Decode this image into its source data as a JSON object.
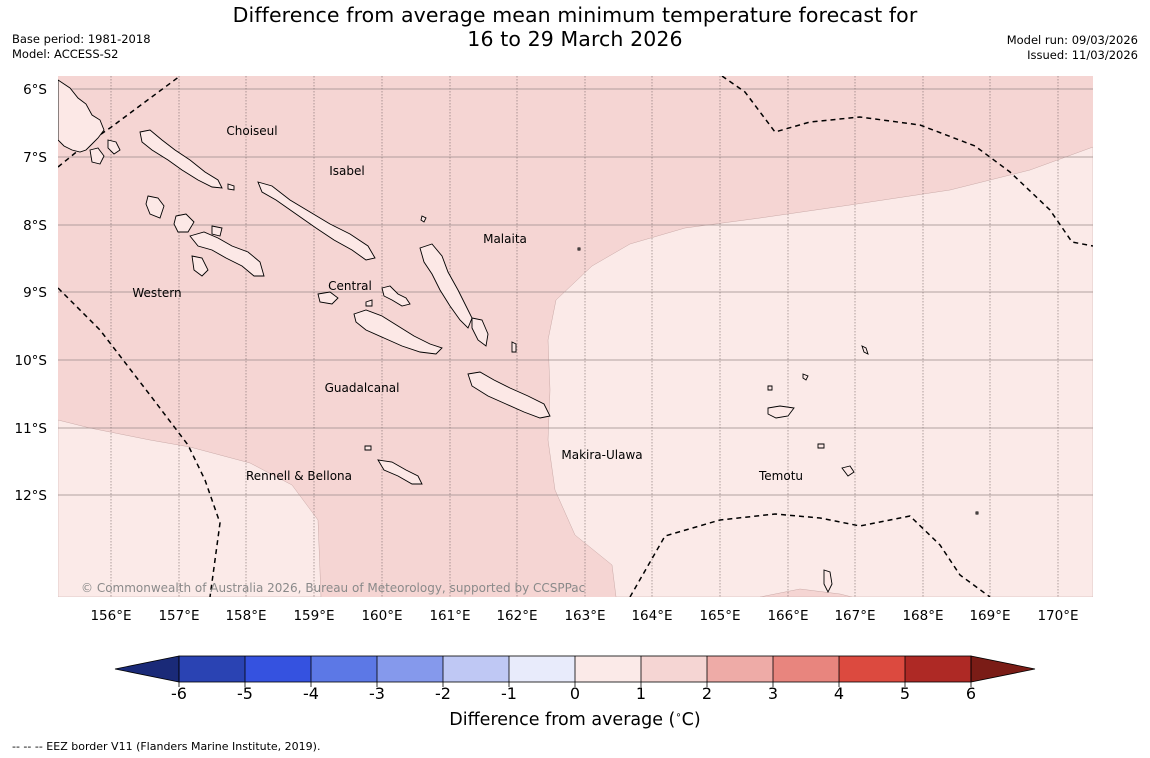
{
  "title": {
    "line1": "Difference from average mean minimum temperature forecast for",
    "line2": "16 to 29 March 2026"
  },
  "meta": {
    "base_period": "Base period: 1981-2018",
    "model": "Model: ACCESS-S2",
    "model_run": "Model run: 09/03/2026",
    "issued": "Issued: 11/03/2026"
  },
  "map": {
    "lat_labels": [
      "6°S",
      "7°S",
      "8°S",
      "9°S",
      "10°S",
      "11°S",
      "12°S"
    ],
    "lon_labels": [
      "156°E",
      "157°E",
      "158°E",
      "159°E",
      "160°E",
      "161°E",
      "162°E",
      "163°E",
      "164°E",
      "165°E",
      "166°E",
      "167°E",
      "168°E",
      "169°E",
      "170°E"
    ],
    "provinces": [
      "Choiseul",
      "Isabel",
      "Malaita",
      "Western",
      "Central",
      "Guadalcanal",
      "Makira-Ulawa",
      "Rennell & Bellona",
      "Temotu"
    ],
    "copyright": "© Commonwealth of Australia 2026, Bureau of Meteorology, supported by CCSPPac",
    "anomaly_regions": [
      {
        "range": "1 to 2",
        "color": "#f5d5d3"
      },
      {
        "range": "0 to 1",
        "color": "#fbeae8"
      }
    ]
  },
  "colorbar": {
    "ticks": [
      "-6",
      "-5",
      "-4",
      "-3",
      "-2",
      "-1",
      "0",
      "1",
      "2",
      "3",
      "4",
      "5",
      "6"
    ],
    "colors": [
      "#1a2a78",
      "#2a43b3",
      "#3552e0",
      "#5c78e6",
      "#8599ec",
      "#bfc8f4",
      "#e8ebfb",
      "#fbeae8",
      "#f5d5d3",
      "#eeaba7",
      "#e8857e",
      "#dc4a3f",
      "#ae2925",
      "#7a1c16"
    ],
    "label": "Difference from average ($^\\circ$C)",
    "label_text": "Difference from average (",
    "label_unit": "C)"
  },
  "footnote": "--  --  -- EEZ border V11 (Flanders Marine Institute, 2019)."
}
